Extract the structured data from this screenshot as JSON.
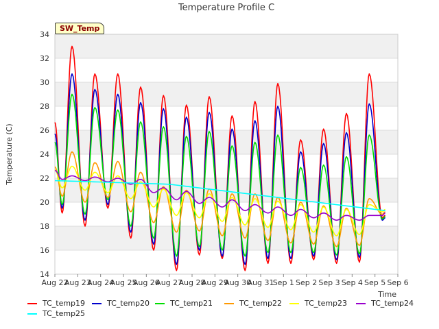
{
  "chart_data": {
    "type": "line",
    "title": "Temperature Profile C",
    "xlabel": "Time",
    "ylabel": "Temperature (C)",
    "ylim": [
      14,
      34
    ],
    "yticks": [
      14,
      16,
      18,
      20,
      22,
      24,
      26,
      28,
      30,
      32,
      34
    ],
    "xticks": [
      "Aug 22",
      "Aug 23",
      "Aug 24",
      "Aug 25",
      "Aug 26",
      "Aug 27",
      "Aug 28",
      "Aug 29",
      "Aug 30",
      "Aug 31",
      "Sep 1",
      "Sep 2",
      "Sep 3",
      "Sep 4",
      "Sep 5",
      "Sep 6"
    ],
    "xlim_days": [
      0,
      15
    ],
    "badge": "SW_Temp",
    "grid": "horizontal bands",
    "legend_position": "bottom",
    "series": [
      {
        "name": "TC_temp19",
        "color": "#ff0000",
        "peaks": [
          33.0,
          30.7,
          30.7,
          29.6,
          28.9,
          28.1,
          28.8,
          27.2,
          28.4,
          29.9,
          25.2,
          26.1,
          27.4,
          30.7
        ],
        "troughs": [
          19.1,
          18.0,
          19.5,
          17.0,
          16.0,
          14.3,
          15.6,
          15.3,
          14.3,
          14.9,
          14.9,
          15.2,
          14.9,
          15.0,
          18.7
        ]
      },
      {
        "name": "TC_temp20",
        "color": "#0000cc",
        "peaks": [
          30.7,
          29.4,
          29.0,
          28.3,
          27.8,
          27.1,
          27.5,
          26.1,
          26.8,
          28.0,
          24.2,
          24.9,
          25.8,
          28.2
        ],
        "troughs": [
          19.5,
          18.5,
          19.8,
          17.5,
          16.5,
          14.8,
          16.0,
          15.5,
          14.8,
          15.3,
          15.3,
          15.5,
          15.2,
          15.4,
          18.5
        ]
      },
      {
        "name": "TC_temp21",
        "color": "#00dd00",
        "peaks": [
          29.0,
          27.9,
          27.7,
          26.7,
          26.3,
          25.5,
          25.9,
          24.7,
          25.0,
          25.6,
          22.9,
          23.1,
          23.8,
          25.6
        ],
        "troughs": [
          19.8,
          19.0,
          20.2,
          18.0,
          17.0,
          15.5,
          16.3,
          16.0,
          15.5,
          15.8,
          15.8,
          15.8,
          15.6,
          15.7,
          18.6
        ]
      },
      {
        "name": "TC_temp22",
        "color": "#ff9900",
        "peaks": [
          24.2,
          23.3,
          23.4,
          22.5,
          21.3,
          21.0,
          21.1,
          20.7,
          20.7,
          20.4,
          20.0,
          19.7,
          19.5,
          20.3
        ],
        "troughs": [
          20.5,
          20.0,
          20.4,
          19.2,
          18.3,
          17.5,
          17.6,
          17.2,
          17.0,
          16.8,
          16.6,
          16.5,
          16.3,
          16.4,
          19.0
        ]
      },
      {
        "name": "TC_temp23",
        "color": "#ffff00",
        "peaks": [
          23.0,
          22.5,
          22.2,
          21.7,
          21.1,
          20.8,
          20.7,
          20.4,
          20.3,
          20.1,
          19.8,
          19.6,
          19.4,
          19.8
        ],
        "troughs": [
          21.2,
          21.0,
          20.8,
          20.3,
          19.6,
          18.9,
          18.7,
          18.4,
          18.1,
          17.9,
          17.7,
          17.5,
          17.2,
          17.3,
          19.2
        ]
      },
      {
        "name": "TC_temp24",
        "color": "#9900cc",
        "peaks": [
          22.2,
          22.1,
          22.0,
          21.9,
          21.2,
          20.9,
          20.4,
          20.2,
          19.8,
          19.6,
          19.4,
          19.1,
          18.9,
          18.9
        ],
        "troughs": [
          21.9,
          21.8,
          21.7,
          21.5,
          20.8,
          20.2,
          19.9,
          19.6,
          19.3,
          19.1,
          18.9,
          18.7,
          18.5,
          18.5,
          18.9
        ]
      },
      {
        "name": "TC_temp25",
        "color": "#00ffff",
        "start": 21.8,
        "mid_day5": 21.5,
        "end": 19.3
      }
    ]
  }
}
